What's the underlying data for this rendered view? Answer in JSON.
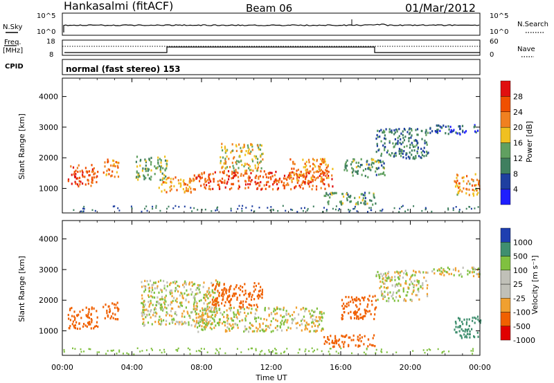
{
  "header": {
    "station": "Hankasalmi (fitACF)",
    "beam": "Beam 06",
    "date": "01/Mar/2012"
  },
  "noise_panel": {
    "left_label": "N.Sky",
    "left_tick_top": "10^5",
    "left_tick_bottom": "10^0",
    "right_label": "N.Search",
    "right_tick_top": "10^5",
    "right_tick_bottom": "10^0"
  },
  "freq_panel": {
    "left_label_line1": "Freq.",
    "left_label_line2": "[MHz]",
    "left_tick_top": "18",
    "left_tick_bottom": "8",
    "right_label": "Nave",
    "right_tick_top": "60",
    "right_tick_bottom": "0"
  },
  "cpid_panel": {
    "label": "CPID",
    "text": "normal (fast stereo) 153"
  },
  "colors": {
    "scale_power": [
      "#1f1fff",
      "#1f3fa0",
      "#3f7f5f",
      "#60a060",
      "#f0c020",
      "#f08020",
      "#f05000",
      "#e01010"
    ],
    "scale_velocity": [
      "#e00000",
      "#f06000",
      "#f0a030",
      "#c0c0b8",
      "#c0c0b8",
      "#80c040",
      "#3f8f6f",
      "#1f3fb0"
    ],
    "ground_scatter": "#bdbdb5"
  },
  "chart_data": [
    {
      "type": "heatmap",
      "panel": "power",
      "ylabel": "Slant Range [km]",
      "y_ticks": [
        "1000",
        "2000",
        "3000",
        "4000"
      ],
      "ylim": [
        200,
        4600
      ],
      "xlim_hours": [
        0,
        24
      ],
      "colorbar_label": "Power [dB]",
      "colorbar_ticks": [
        "4",
        "8",
        "12",
        "16",
        "20",
        "24",
        "28"
      ],
      "colorbar_range": [
        0,
        32
      ],
      "regions": [
        {
          "t0": 0.3,
          "t1": 2.0,
          "r0": 1100,
          "r1": 1800,
          "level": 26
        },
        {
          "t0": 2.3,
          "t1": 3.2,
          "r0": 1400,
          "r1": 2000,
          "level": 22
        },
        {
          "t0": 4.2,
          "t1": 6.0,
          "r0": 1300,
          "r1": 2100,
          "level": 14
        },
        {
          "t0": 5.5,
          "t1": 7.5,
          "r0": 900,
          "r1": 1400,
          "level": 20
        },
        {
          "t0": 7.5,
          "t1": 15.5,
          "r0": 1000,
          "r1": 1600,
          "level": 26
        },
        {
          "t0": 9.0,
          "t1": 11.5,
          "r0": 1600,
          "r1": 2500,
          "level": 18
        },
        {
          "t0": 13.0,
          "t1": 15.5,
          "r0": 1300,
          "r1": 2000,
          "level": 22
        },
        {
          "t0": 15.0,
          "t1": 18.0,
          "r0": 500,
          "r1": 900,
          "level": 12
        },
        {
          "t0": 16.0,
          "t1": 18.5,
          "r0": 1400,
          "r1": 2000,
          "level": 12
        },
        {
          "t0": 18.0,
          "t1": 21.0,
          "r0": 2000,
          "r1": 3000,
          "level": 10
        },
        {
          "t0": 21.0,
          "t1": 24.0,
          "r0": 2800,
          "r1": 3100,
          "level": 6
        },
        {
          "t0": 22.5,
          "t1": 24.0,
          "r0": 800,
          "r1": 1500,
          "level": 20
        }
      ]
    },
    {
      "type": "heatmap",
      "panel": "velocity",
      "ylabel": "Slant Range [km]",
      "y_ticks": [
        "1000",
        "2000",
        "3000",
        "4000"
      ],
      "ylim": [
        200,
        4600
      ],
      "xlim_hours": [
        0,
        24
      ],
      "x_ticks": [
        "00:00",
        "04:00",
        "08:00",
        "12:00",
        "16:00",
        "20:00",
        "00:00"
      ],
      "xlabel": "Time UT",
      "colorbar_label": "Velocity [m s⁻¹]",
      "colorbar_ticks": [
        "1000",
        "500",
        "100",
        "25",
        "-25",
        "-100",
        "-500",
        "-1000"
      ],
      "regions": [
        {
          "t0": 0.3,
          "t1": 2.0,
          "r0": 1100,
          "r1": 1800,
          "level": -300
        },
        {
          "t0": 2.3,
          "t1": 3.2,
          "r0": 1400,
          "r1": 2000,
          "level": -200
        },
        {
          "t0": 4.5,
          "t1": 9.0,
          "r0": 1200,
          "r1": 2700,
          "level": 0
        },
        {
          "t0": 7.5,
          "t1": 15.0,
          "r0": 1000,
          "r1": 1800,
          "level": 0
        },
        {
          "t0": 8.5,
          "t1": 11.5,
          "r0": 1800,
          "r1": 2600,
          "level": -400
        },
        {
          "t0": 15.0,
          "t1": 18.0,
          "r0": 500,
          "r1": 900,
          "level": -200
        },
        {
          "t0": 16.0,
          "t1": 18.0,
          "r0": 1400,
          "r1": 2200,
          "level": -400
        },
        {
          "t0": 18.0,
          "t1": 21.0,
          "r0": 2000,
          "r1": 3000,
          "level": 0
        },
        {
          "t0": 21.0,
          "t1": 24.0,
          "r0": 2800,
          "r1": 3100,
          "level": 0
        },
        {
          "t0": 22.5,
          "t1": 24.0,
          "r0": 800,
          "r1": 1500,
          "level": 300
        }
      ]
    }
  ]
}
